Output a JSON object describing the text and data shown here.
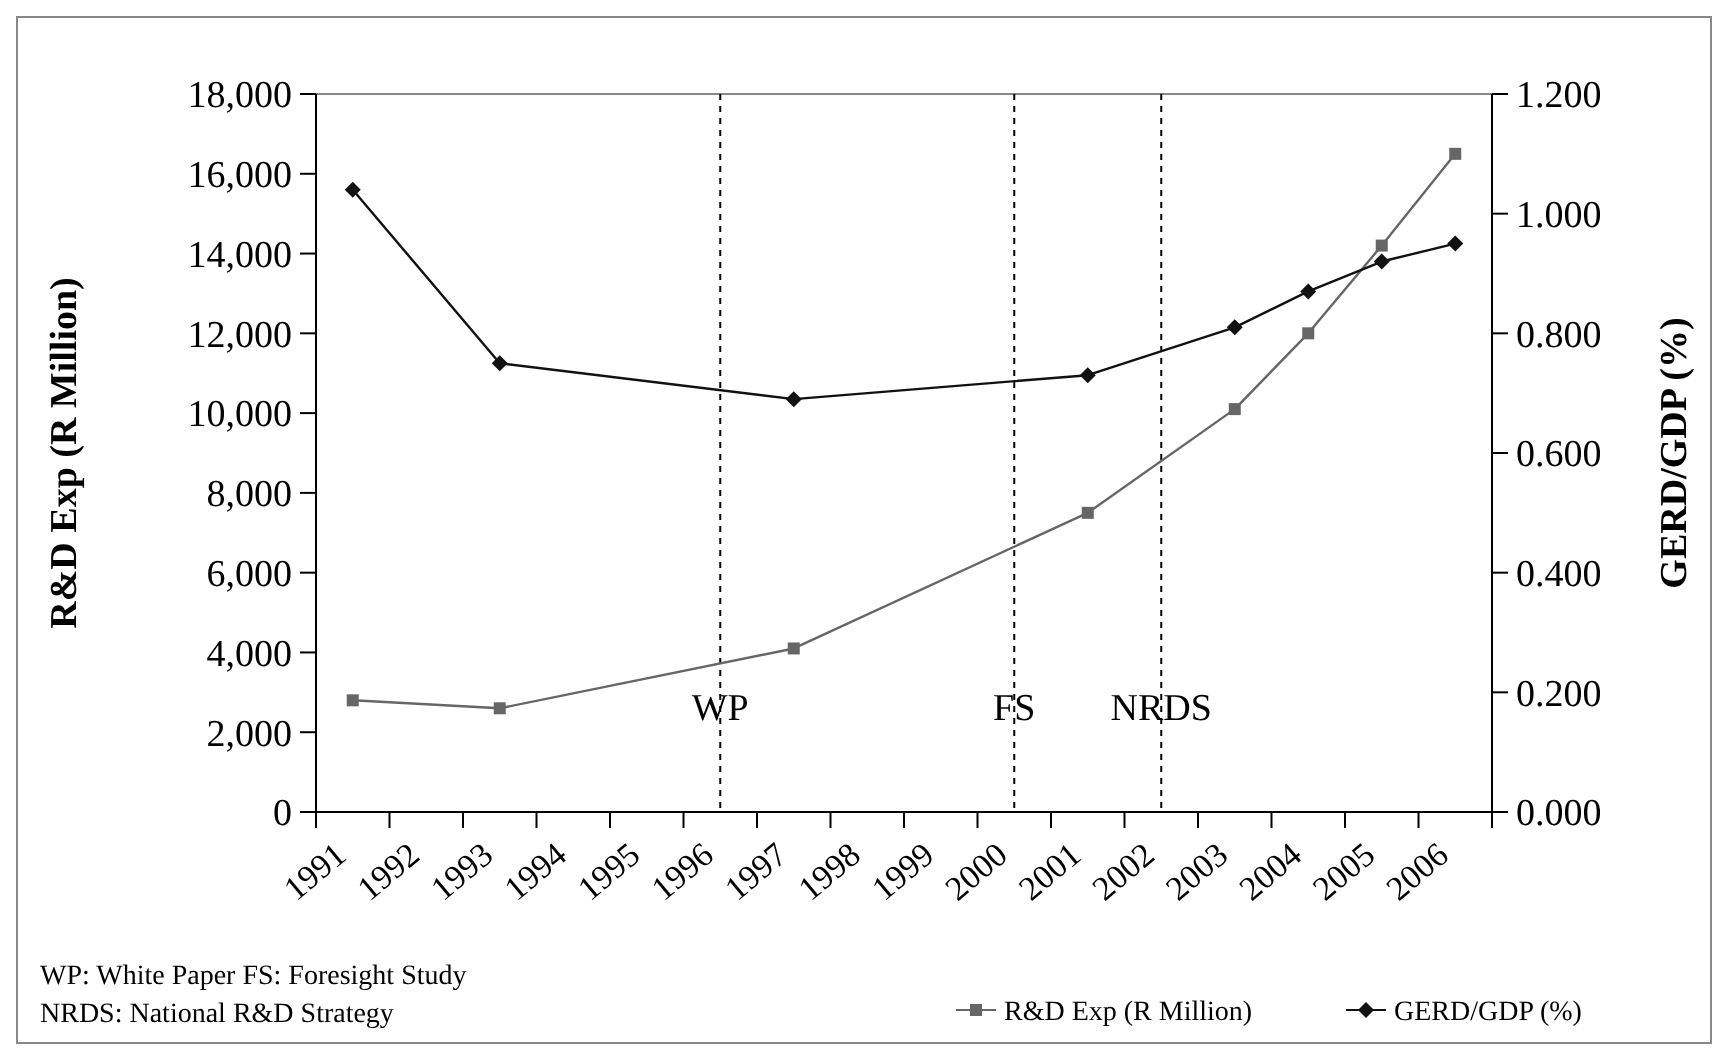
{
  "chart_data": {
    "type": "line",
    "categories": [
      "1991",
      "1992",
      "1993",
      "1994",
      "1995",
      "1996",
      "1997",
      "1998",
      "1999",
      "2000",
      "2001",
      "2002",
      "2003",
      "2004",
      "2005",
      "2006"
    ],
    "ylabel": "R&D Exp (R Million)",
    "y2label": "GERD/GDP (%)",
    "ylim": [
      0,
      18000
    ],
    "yticks": [
      {
        "value": 0,
        "label": "0"
      },
      {
        "value": 2000,
        "label": "2,000"
      },
      {
        "value": 4000,
        "label": "4,000"
      },
      {
        "value": 6000,
        "label": "6,000"
      },
      {
        "value": 8000,
        "label": "8,000"
      },
      {
        "value": 10000,
        "label": "10,000"
      },
      {
        "value": 12000,
        "label": "12,000"
      },
      {
        "value": 14000,
        "label": "14,000"
      },
      {
        "value": 16000,
        "label": "16,000"
      },
      {
        "value": 18000,
        "label": "18,000"
      }
    ],
    "y2lim": [
      0,
      1.2
    ],
    "y2ticks": [
      {
        "value": 0,
        "label": "0.000"
      },
      {
        "value": 0.2,
        "label": "0.200"
      },
      {
        "value": 0.4,
        "label": "0.400"
      },
      {
        "value": 0.6,
        "label": "0.600"
      },
      {
        "value": 0.8,
        "label": "0.800"
      },
      {
        "value": 1,
        "label": "1.000"
      },
      {
        "value": 1.2,
        "label": "1.200"
      }
    ],
    "series": [
      {
        "name": "R&D Exp (R Million)",
        "color": "#666666",
        "marker": "square",
        "values": [
          2800,
          null,
          2600,
          null,
          null,
          null,
          4100,
          null,
          null,
          null,
          7500,
          null,
          10100,
          12000,
          14200,
          16500
        ]
      },
      {
        "name": "GERD/GDP (%)",
        "color": "#111111",
        "marker": "diamond",
        "axis": "y2",
        "values": [
          1.04,
          null,
          0.75,
          null,
          null,
          null,
          0.69,
          null,
          null,
          null,
          0.73,
          null,
          0.81,
          0.87,
          0.92,
          0.95
        ]
      }
    ],
    "ref_lines": [
      {
        "axis": "x",
        "value": "1996",
        "label": "WP",
        "color": "#000000",
        "line_style": "dashed"
      },
      {
        "axis": "x",
        "value": "2000",
        "label": "FS",
        "color": "#000000",
        "line_style": "dashed"
      },
      {
        "axis": "x",
        "value": "2002",
        "label": "NRDS",
        "color": "#000000",
        "line_style": "dashed"
      }
    ],
    "annotations": [
      "WP: White Paper  FS: Foresight Study",
      "NRDS: National R&D Strategy"
    ],
    "legend": "bottom right",
    "grid": false
  }
}
